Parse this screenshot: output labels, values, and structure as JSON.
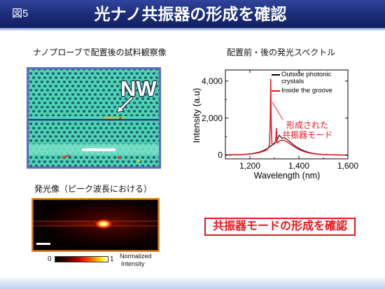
{
  "slide": {
    "figure_label": "図5",
    "title": "光ナノ共振器の形成を確認"
  },
  "panels": {
    "sem": {
      "caption": "ナノプローブで配置後の試料観察像",
      "label": "NW"
    },
    "emission": {
      "caption": "発光像（ピーク波長における）",
      "colorbar": {
        "min_label": "0",
        "max_label": "1",
        "title_lines": [
          "Normalized",
          "Intensity"
        ]
      }
    }
  },
  "conclusion": {
    "text": "共振器モードの形成を確認"
  },
  "colors": {
    "title_bar": "#1b2b76",
    "accent_red": "#e8141c",
    "emission_frame": "#e8801e",
    "sem_frame": "#6469c0"
  },
  "chart_data": {
    "type": "line",
    "title": "配置前・後の発光スペクトル",
    "xlabel": "Wavelength (nm)",
    "ylabel": "Intensity (a.u)",
    "xlim": [
      1100,
      1600
    ],
    "ylim": [
      -200,
      4600
    ],
    "xticks": [
      1200,
      1400,
      1600
    ],
    "xtick_labels": [
      "1,200",
      "1,400",
      "1,600"
    ],
    "yticks": [
      0,
      2000,
      4000
    ],
    "ytick_labels": [
      "0",
      "2,000",
      "4,000"
    ],
    "grid": false,
    "legend": {
      "placement": "top-right"
    },
    "series": [
      {
        "name": "Outside photonic crystals",
        "color": "#000000",
        "x": [
          1100,
          1110,
          1120,
          1130,
          1140,
          1150,
          1160,
          1170,
          1180,
          1190,
          1200,
          1210,
          1220,
          1230,
          1240,
          1250,
          1260,
          1270,
          1280,
          1290,
          1300,
          1310,
          1320,
          1330,
          1340,
          1350,
          1360,
          1370,
          1380,
          1390,
          1400,
          1410,
          1420,
          1430,
          1440,
          1450,
          1460,
          1470,
          1480,
          1490,
          1500,
          1510,
          1520,
          1530,
          1540,
          1550,
          1560,
          1570,
          1580,
          1590,
          1600
        ],
        "y": [
          20,
          10,
          30,
          15,
          35,
          25,
          40,
          35,
          55,
          60,
          75,
          90,
          115,
          140,
          175,
          220,
          280,
          350,
          430,
          540,
          660,
          780,
          1080,
          920,
          940,
          860,
          760,
          650,
          540,
          450,
          370,
          300,
          240,
          190,
          150,
          120,
          95,
          75,
          60,
          50,
          40,
          35,
          30,
          25,
          20,
          20,
          15,
          15,
          10,
          10,
          5
        ]
      },
      {
        "name": "Inside the groove",
        "color": "#e8141c",
        "x": [
          1100,
          1110,
          1120,
          1130,
          1140,
          1150,
          1160,
          1170,
          1180,
          1190,
          1200,
          1210,
          1220,
          1230,
          1240,
          1250,
          1260,
          1270,
          1275,
          1280,
          1283,
          1285,
          1287,
          1290,
          1295,
          1300,
          1305,
          1308,
          1311,
          1315,
          1320,
          1330,
          1340,
          1350,
          1360,
          1370,
          1380,
          1390,
          1400,
          1410,
          1420,
          1430,
          1440,
          1450,
          1460,
          1470,
          1480,
          1490,
          1500,
          1510,
          1520,
          1530,
          1540,
          1550,
          1560,
          1570,
          1580,
          1590,
          1600
        ],
        "y": [
          5,
          15,
          0,
          20,
          25,
          10,
          35,
          30,
          45,
          50,
          60,
          75,
          95,
          115,
          145,
          185,
          235,
          300,
          380,
          540,
          1700,
          4100,
          1600,
          620,
          560,
          610,
          690,
          1450,
          660,
          700,
          760,
          820,
          790,
          730,
          650,
          550,
          460,
          380,
          310,
          250,
          200,
          160,
          125,
          100,
          80,
          62,
          50,
          40,
          32,
          26,
          20,
          15,
          12,
          10,
          8,
          6,
          5,
          2,
          0
        ]
      }
    ],
    "annotation": {
      "lines": [
        "形成された",
        "共振器モード"
      ],
      "color": "#e8141c"
    }
  }
}
